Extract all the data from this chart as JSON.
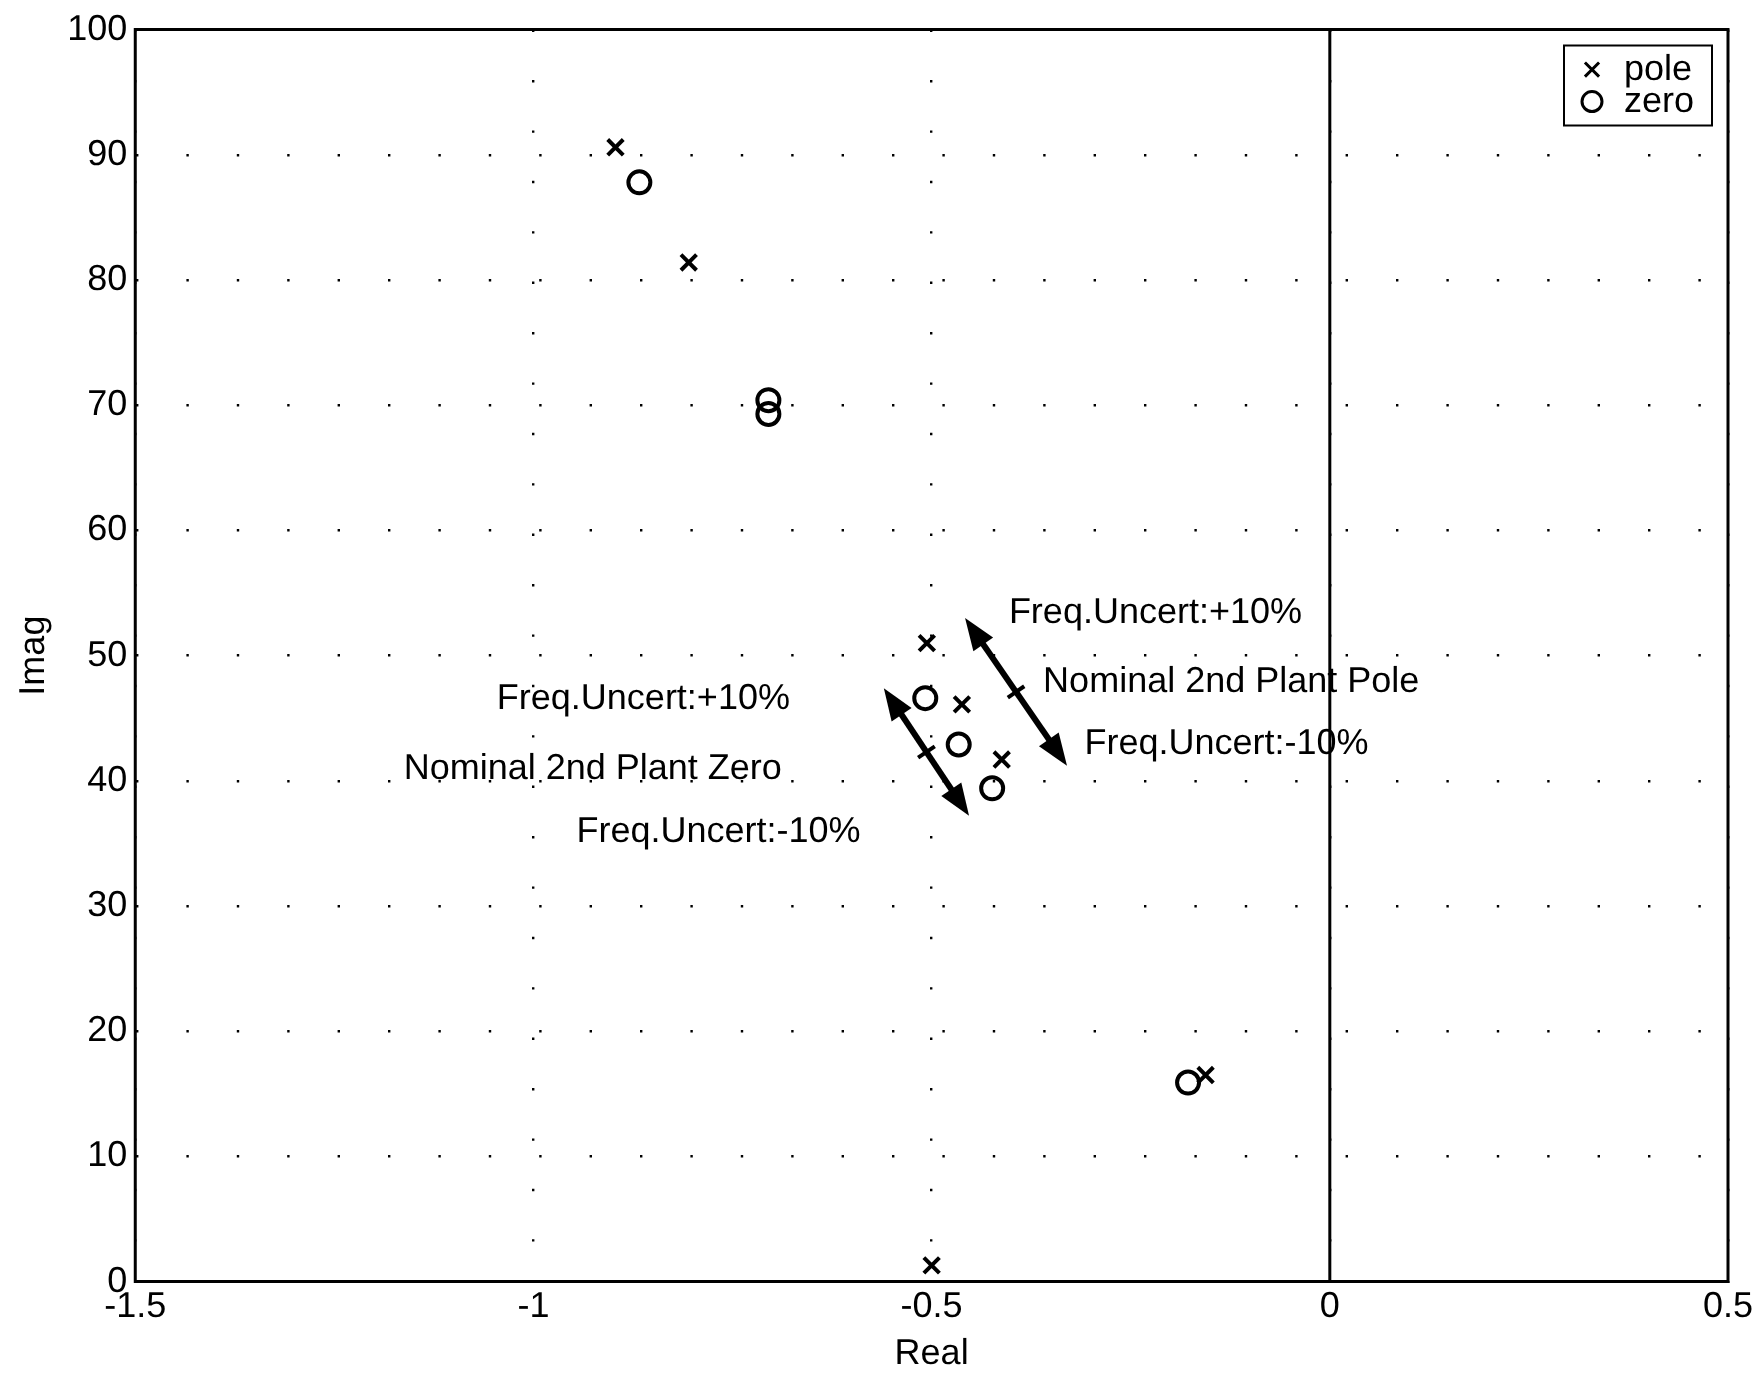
{
  "chart_data": {
    "type": "scatter",
    "xlabel": "Real",
    "ylabel": "Imag",
    "xlim": [
      -1.5,
      0.5
    ],
    "xticks": [
      -1.5,
      -1,
      -0.5,
      0,
      0.5
    ],
    "ylim": [
      0,
      100
    ],
    "yticks": [
      0,
      10,
      20,
      30,
      40,
      50,
      60,
      70,
      80,
      90,
      100
    ],
    "grid": true,
    "legend": "top right",
    "ref_lines": [
      {
        "axis": "x",
        "value": 0,
        "color": "#000000",
        "line_style": "solid"
      }
    ],
    "series": [
      {
        "name": "pole",
        "color": "#000000",
        "marker": "cross",
        "x": [
          -0.897,
          -0.805,
          -0.506,
          -0.462,
          -0.412,
          -0.156,
          -0.5
        ],
        "values": [
          90.6,
          81.4,
          51.0,
          46.1,
          41.7,
          16.5,
          1.3
        ]
      },
      {
        "name": "zero",
        "color": "#000000",
        "marker": "circle",
        "x": [
          -0.867,
          -0.705,
          -0.705,
          -0.508,
          -0.466,
          -0.424,
          -0.178
        ],
        "values": [
          87.8,
          70.4,
          69.3,
          46.6,
          42.9,
          39.4,
          15.9
        ]
      }
    ],
    "annotations": [
      "Freq.Uncert:+10%",
      "Nominal 2nd Plant Pole",
      "Freq.Uncert:-10%",
      "Freq.Uncert:+10%",
      "Nominal 2nd Plant Zero",
      "Freq.Uncert:-10%"
    ]
  }
}
